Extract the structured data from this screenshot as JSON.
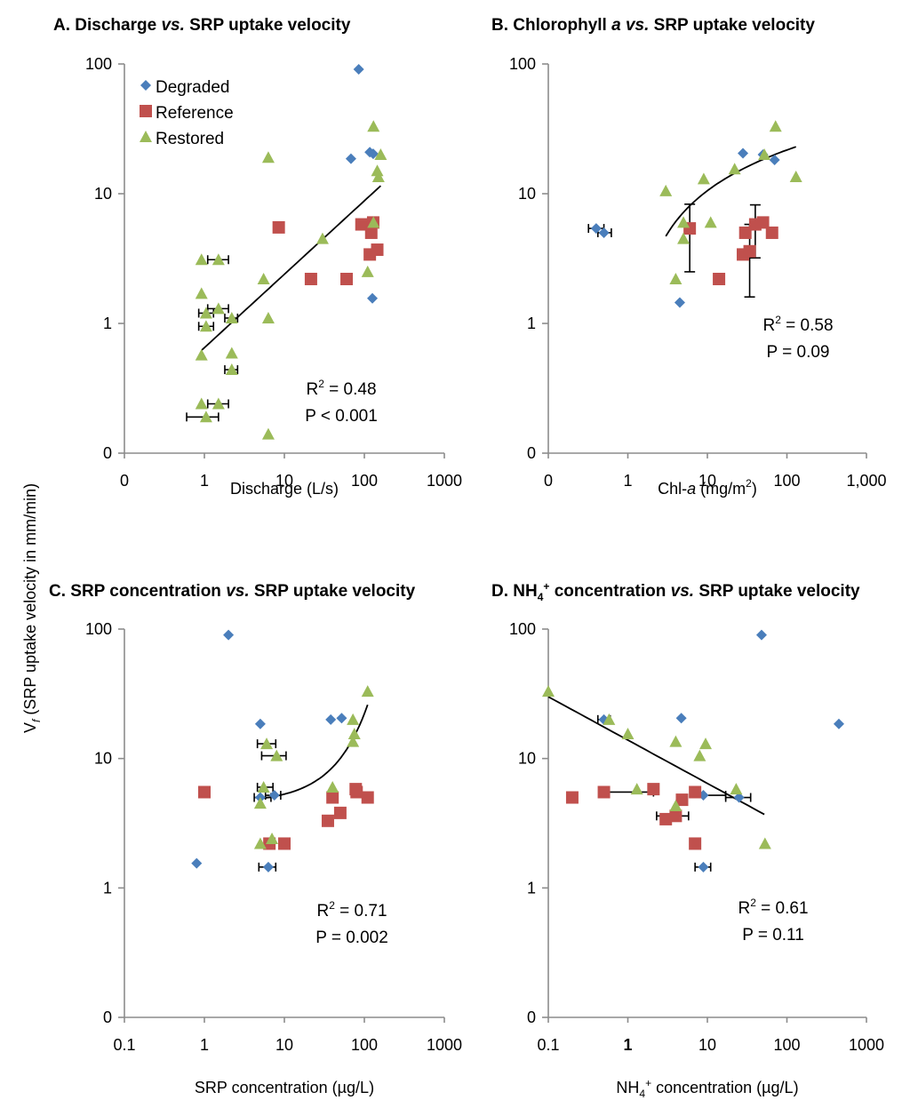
{
  "figure": {
    "shared_ylabel": "V",
    "shared_ylabel_sub": "f",
    "shared_ylabel_rest": " (SRP uptake velocity in mm/min)",
    "legend": [
      {
        "name": "Degraded",
        "marker": "diamond",
        "color": "#4a7ebb"
      },
      {
        "name": "Reference",
        "marker": "square",
        "color": "#c0504d"
      },
      {
        "name": "Restored",
        "marker": "triangle",
        "color": "#9bbb59"
      }
    ]
  },
  "chart_data": [
    {
      "id": "A",
      "type": "scatter",
      "title_parts": [
        "A. Discharge ",
        "vs.",
        " SRP uptake velocity"
      ],
      "xlabel": "Discharge (L/s)",
      "ylabel": "Vf (SRP uptake velocity in mm/min)",
      "xscale": "log",
      "yscale": "log",
      "xlim": [
        0.1,
        1000
      ],
      "ylim": [
        0.1,
        100
      ],
      "xticks": [
        "0",
        "1",
        "10",
        "100",
        "1000"
      ],
      "yticks": [
        "0",
        "1",
        "10",
        "100"
      ],
      "legend_position": "top-left",
      "stats": {
        "r2": "R² = 0.48",
        "r2_pre": "R",
        "r2_sup": "2",
        "r2_post": " = 0.48",
        "p": "P < 0.001"
      },
      "series": [
        {
          "name": "Degraded",
          "points": [
            [
              85,
              91
            ],
            [
              68,
              18.6
            ],
            [
              117,
              20.9
            ],
            [
              129,
              20.3
            ],
            [
              126,
              1.56
            ]
          ]
        },
        {
          "name": "Reference",
          "points": [
            [
              8.5,
              5.5
            ],
            [
              21.5,
              2.2
            ],
            [
              60,
              2.2
            ],
            [
              92,
              5.8
            ],
            [
              129,
              6
            ],
            [
              122,
              5
            ],
            [
              117,
              3.4
            ],
            [
              145,
              3.7
            ]
          ]
        },
        {
          "name": "Restored",
          "points": [
            [
              6.3,
              19
            ],
            [
              130,
              33
            ],
            [
              160,
              20
            ],
            [
              145,
              15
            ],
            [
              150,
              13.5
            ],
            [
              130,
              6
            ],
            [
              30,
              4.5
            ],
            [
              5.5,
              2.2
            ],
            [
              110,
              2.5
            ],
            [
              0.92,
              3.1
            ],
            [
              1.5,
              3.1
            ],
            [
              0.92,
              1.7
            ],
            [
              1.5,
              1.3
            ],
            [
              1.05,
              1.2
            ],
            [
              2.2,
              1.1
            ],
            [
              6.3,
              1.1
            ],
            [
              1.05,
              0.95
            ],
            [
              0.92,
              0.57
            ],
            [
              2.2,
              0.59
            ],
            [
              2.2,
              0.44
            ],
            [
              0.92,
              0.24
            ],
            [
              1.5,
              0.24
            ],
            [
              1.05,
              0.19
            ],
            [
              6.3,
              0.14
            ]
          ]
        }
      ],
      "error_bars_x": [
        {
          "x": 1.5,
          "y": 3.1,
          "lo": 1.1,
          "hi": 2.0
        },
        {
          "x": 1.5,
          "y": 1.3,
          "lo": 1.1,
          "hi": 2.0
        },
        {
          "x": 1.05,
          "y": 1.2,
          "lo": 0.85,
          "hi": 1.3
        },
        {
          "x": 2.2,
          "y": 1.1,
          "lo": 1.8,
          "hi": 2.6
        },
        {
          "x": 1.05,
          "y": 0.95,
          "lo": 0.85,
          "hi": 1.3
        },
        {
          "x": 2.2,
          "y": 0.44,
          "lo": 1.8,
          "hi": 2.6
        },
        {
          "x": 1.5,
          "y": 0.24,
          "lo": 1.1,
          "hi": 2.0
        },
        {
          "x": 1.05,
          "y": 0.19,
          "lo": 0.6,
          "hi": 1.5
        }
      ],
      "error_bars_y": [],
      "trend": {
        "kind": "power",
        "x": [
          0.92,
          160
        ],
        "y": [
          0.62,
          11.5
        ]
      }
    },
    {
      "id": "B",
      "type": "scatter",
      "title_parts": [
        "B. Chlorophyll ",
        "a vs.",
        " SRP uptake velocity"
      ],
      "xlabel_parts": [
        "Chl-",
        "a",
        " (mg/m",
        "2",
        ")"
      ],
      "xlabel": "Chl-a (mg/m²)",
      "xscale": "log",
      "yscale": "log",
      "xlim": [
        0.1,
        1000
      ],
      "ylim": [
        0.1,
        100
      ],
      "xticks": [
        "0",
        "1",
        "10",
        "100",
        "1,000"
      ],
      "yticks": [
        "0",
        "1",
        "10",
        "100"
      ],
      "stats": {
        "r2_pre": "R",
        "r2_sup": "2",
        "r2_post": " = 0.58",
        "p": "P = 0.09"
      },
      "series": [
        {
          "name": "Degraded",
          "points": [
            [
              0.4,
              5.4
            ],
            [
              0.5,
              5.0
            ],
            [
              28,
              20.5
            ],
            [
              50,
              20
            ],
            [
              70,
              18.2
            ],
            [
              4.5,
              1.45
            ]
          ]
        },
        {
          "name": "Reference",
          "points": [
            [
              6,
              5.4
            ],
            [
              14,
              2.2
            ],
            [
              28,
              3.4
            ],
            [
              30,
              5
            ],
            [
              34,
              3.6
            ],
            [
              40,
              5.8
            ],
            [
              50,
              6
            ],
            [
              65,
              5
            ]
          ]
        },
        {
          "name": "Restored",
          "points": [
            [
              3,
              10.5
            ],
            [
              9,
              13
            ],
            [
              22,
              15.5
            ],
            [
              52,
              20
            ],
            [
              72,
              33
            ],
            [
              130,
              13.5
            ],
            [
              5,
              6
            ],
            [
              11,
              6
            ],
            [
              5,
              4.5
            ],
            [
              4,
              2.2
            ]
          ]
        }
      ],
      "error_bars_x": [
        {
          "x": 0.4,
          "y": 5.4,
          "lo": 0.32,
          "hi": 0.5
        },
        {
          "x": 0.5,
          "y": 5.0,
          "lo": 0.42,
          "hi": 0.62
        }
      ],
      "error_bars_y": [
        {
          "x": 6,
          "y": 5.4,
          "lo": 2.5,
          "hi": 8.3
        },
        {
          "x": 34,
          "y": 3.6,
          "lo": 1.6,
          "hi": 5.8
        },
        {
          "x": 40,
          "y": 5.8,
          "lo": 3.2,
          "hi": 8.2
        }
      ],
      "trend": {
        "kind": "log",
        "x": [
          3,
          130
        ],
        "y": [
          4.7,
          23
        ]
      }
    },
    {
      "id": "C",
      "type": "scatter",
      "title_parts": [
        "C. SRP concentration ",
        "vs.",
        " SRP uptake velocity"
      ],
      "xlabel": "SRP concentration (µg/L)",
      "xscale": "log",
      "yscale": "log",
      "xlim": [
        0.1,
        1000
      ],
      "ylim": [
        0.1,
        100
      ],
      "xticks": [
        "0.1",
        "1",
        "10",
        "100",
        "1000"
      ],
      "yticks": [
        "0",
        "1",
        "10",
        "100"
      ],
      "stats": {
        "r2_pre": "R",
        "r2_sup": "2",
        "r2_post": " = 0.71",
        "p": "P = 0.002"
      },
      "series": [
        {
          "name": "Degraded",
          "points": [
            [
              2,
              90
            ],
            [
              5,
              18.5
            ],
            [
              38,
              20
            ],
            [
              52,
              20.5
            ],
            [
              5,
              5
            ],
            [
              7.5,
              5.2
            ],
            [
              0.8,
              1.55
            ],
            [
              6.3,
              1.45
            ]
          ]
        },
        {
          "name": "Reference",
          "points": [
            [
              1,
              5.5
            ],
            [
              40,
              5
            ],
            [
              78,
              5.8
            ],
            [
              80,
              5.5
            ],
            [
              110,
              5
            ],
            [
              50,
              3.8
            ],
            [
              35,
              3.3
            ],
            [
              6.5,
              2.2
            ],
            [
              10,
              2.2
            ]
          ]
        },
        {
          "name": "Restored",
          "points": [
            [
              110,
              33
            ],
            [
              72,
              20
            ],
            [
              75,
              15.5
            ],
            [
              72,
              13.5
            ],
            [
              6,
              13
            ],
            [
              8,
              10.5
            ],
            [
              5.5,
              6
            ],
            [
              40,
              6
            ],
            [
              5,
              4.5
            ],
            [
              5,
              2.2
            ],
            [
              7,
              2.4
            ]
          ]
        }
      ],
      "error_bars_x": [
        {
          "x": 6,
          "y": 13,
          "lo": 4.6,
          "hi": 7.8
        },
        {
          "x": 8,
          "y": 10.5,
          "lo": 5.2,
          "hi": 10.5
        },
        {
          "x": 5.5,
          "y": 6,
          "lo": 4.6,
          "hi": 7.2
        },
        {
          "x": 5,
          "y": 5,
          "lo": 4.2,
          "hi": 6.8
        },
        {
          "x": 7.5,
          "y": 5.2,
          "lo": 5.8,
          "hi": 9
        },
        {
          "x": 6.3,
          "y": 1.45,
          "lo": 4.8,
          "hi": 7.8
        }
      ],
      "error_bars_y": [],
      "trend": {
        "kind": "exp",
        "x": [
          5,
          110
        ],
        "y": [
          4.9,
          26
        ]
      }
    },
    {
      "id": "D",
      "type": "scatter",
      "title_parts": [
        "D. NH",
        "4",
        "+",
        " concentration ",
        "vs.",
        " SRP uptake velocity"
      ],
      "xlabel_parts": [
        "NH",
        "4",
        "+",
        " concentration (µg/L)"
      ],
      "xlabel": "NH4+ concentration (µg/L)",
      "xscale": "log",
      "yscale": "log",
      "xlim": [
        0.1,
        1000
      ],
      "ylim": [
        0.1,
        100
      ],
      "xticks": [
        "0.1",
        "1",
        "10",
        "100",
        "1000"
      ],
      "yticks": [
        "0",
        "1",
        "10",
        "100"
      ],
      "stats": {
        "r2_pre": "R",
        "r2_sup": "2",
        "r2_post": " = 0.61",
        "p": "P = 0.11"
      },
      "series": [
        {
          "name": "Degraded",
          "points": [
            [
              48,
              90
            ],
            [
              450,
              18.5
            ],
            [
              0.5,
              20
            ],
            [
              4.7,
              20.5
            ],
            [
              8.9,
              5.2
            ],
            [
              25,
              5
            ],
            [
              8.9,
              1.45
            ]
          ]
        },
        {
          "name": "Reference",
          "points": [
            [
              0.2,
              5
            ],
            [
              0.5,
              5.5
            ],
            [
              2.1,
              5.8
            ],
            [
              4.8,
              4.8
            ],
            [
              7,
              5.5
            ],
            [
              3,
              3.4
            ],
            [
              4,
              3.6
            ],
            [
              7,
              2.2
            ]
          ]
        },
        {
          "name": "Restored",
          "points": [
            [
              0.1,
              33
            ],
            [
              0.58,
              20
            ],
            [
              1,
              15.5
            ],
            [
              4,
              13.5
            ],
            [
              9.5,
              13
            ],
            [
              8,
              10.5
            ],
            [
              1.3,
              5.8
            ],
            [
              23,
              5.8
            ],
            [
              4,
              4.3
            ],
            [
              53,
              2.2
            ]
          ]
        }
      ],
      "error_bars_x": [
        {
          "x": 0.5,
          "y": 20,
          "lo": 0.42,
          "hi": 0.6
        },
        {
          "x": 0.5,
          "y": 5.5,
          "lo": 0.5,
          "hi": 2.1
        },
        {
          "x": 3.5,
          "y": 3.6,
          "lo": 2.3,
          "hi": 5.8
        },
        {
          "x": 8.9,
          "y": 5.2,
          "lo": 8.9,
          "hi": 17
        },
        {
          "x": 25,
          "y": 5,
          "lo": 17,
          "hi": 35
        },
        {
          "x": 8.9,
          "y": 1.45,
          "lo": 7,
          "hi": 11
        }
      ],
      "error_bars_y": [],
      "trend": {
        "kind": "power",
        "x": [
          0.1,
          52
        ],
        "y": [
          30,
          3.7
        ]
      }
    }
  ]
}
